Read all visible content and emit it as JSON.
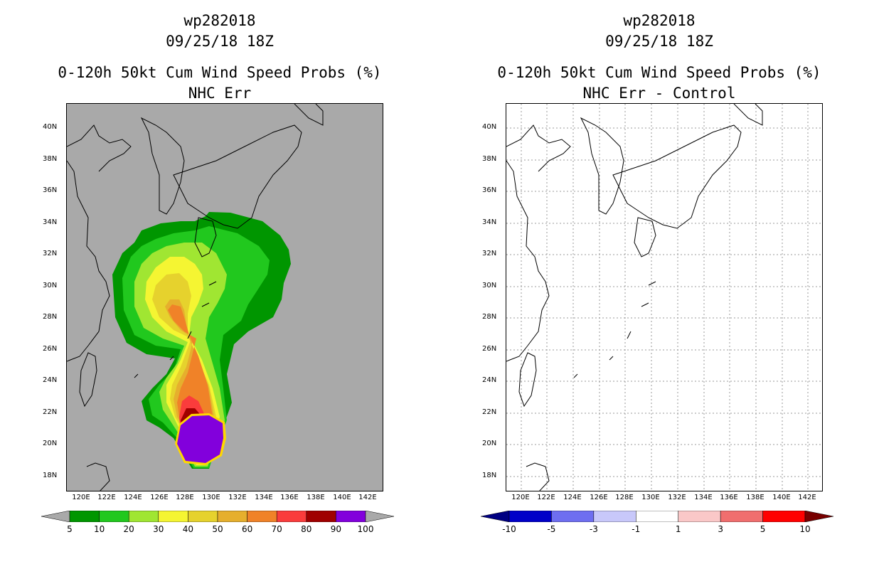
{
  "left": {
    "storm_id": "wp282018",
    "datetime": "09/25/18 18Z",
    "product": "0-120h 50kt Cum Wind Speed Probs (%)",
    "subtitle": "NHC Err",
    "colorbar": {
      "labels": [
        "5",
        "10",
        "20",
        "30",
        "40",
        "50",
        "60",
        "70",
        "80",
        "90",
        "100"
      ],
      "colors": [
        "#009600",
        "#21c81e",
        "#a0e632",
        "#f5f532",
        "#e6d22d",
        "#e6af2d",
        "#f08228",
        "#fa3c3c",
        "#a00000",
        "#8200dc"
      ],
      "under_color": "#a9a9a9",
      "over_color": "#a9a9a9"
    }
  },
  "right": {
    "storm_id": "wp282018",
    "datetime": "09/25/18 18Z",
    "product": "0-120h 50kt Cum Wind Speed Probs (%)",
    "subtitle": "NHC Err - Control",
    "colorbar": {
      "labels": [
        "-10",
        "-5",
        "-3",
        "-1",
        "1",
        "3",
        "5",
        "10"
      ],
      "colors": [
        "#0000c8",
        "#6e6ef0",
        "#c8c8fa",
        "#ffffff",
        "#fac8c8",
        "#f06e6e",
        "#ff0000"
      ],
      "under_color": "#000082",
      "over_color": "#780000"
    }
  },
  "axes": {
    "lat_labels": [
      "40N",
      "38N",
      "36N",
      "34N",
      "32N",
      "30N",
      "28N",
      "26N",
      "24N",
      "22N",
      "20N",
      "18N"
    ],
    "lon_labels": [
      "120E",
      "122E",
      "124E",
      "126E",
      "128E",
      "130E",
      "132E",
      "134E",
      "136E",
      "138E",
      "140E",
      "142E"
    ]
  }
}
